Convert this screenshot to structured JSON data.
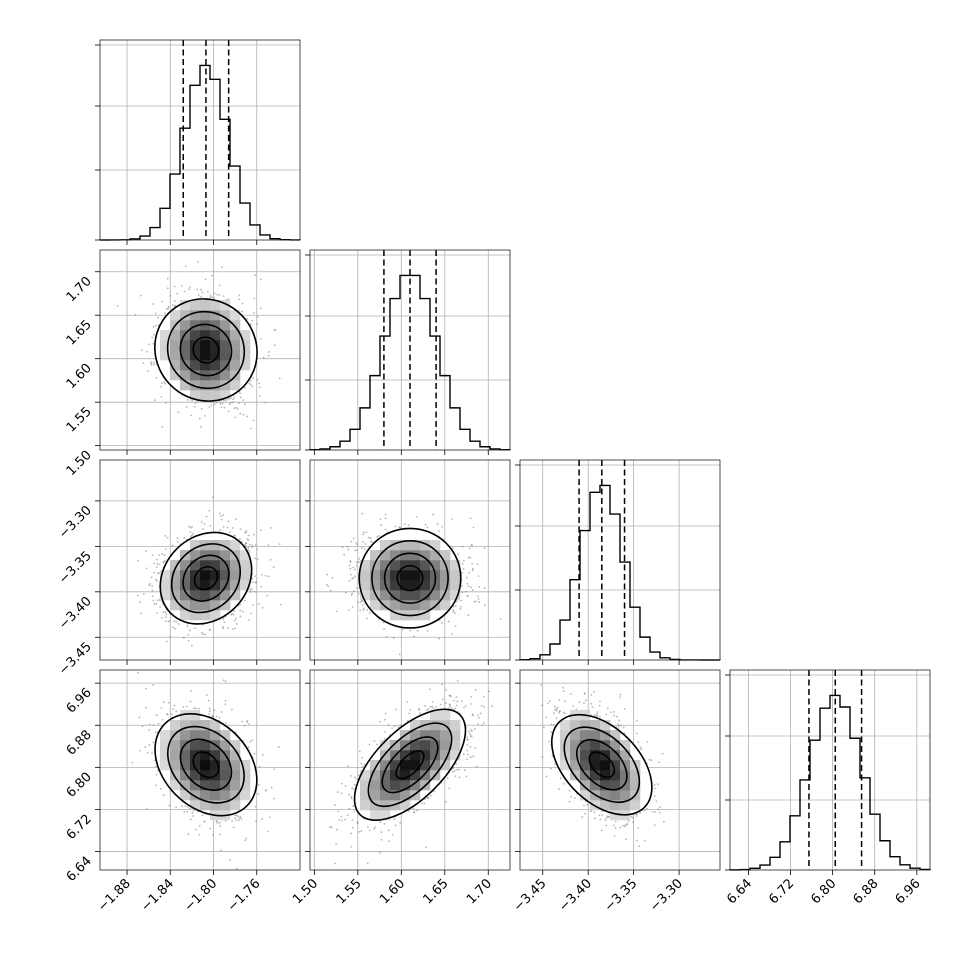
{
  "chart_data": {
    "type": "corner",
    "parameters": [
      {
        "center": -1.807,
        "std": 0.0205,
        "range": [
          -1.905,
          -1.72
        ],
        "ticks": [
          -1.88,
          -1.84,
          -1.8,
          -1.76
        ],
        "tick_labels": [
          "−1.88",
          "−1.84",
          "−1.80",
          "−1.76"
        ],
        "quantiles": [
          -1.828,
          -1.807,
          -1.786
        ]
      },
      {
        "center": 1.61,
        "std": 0.0305,
        "range": [
          1.495,
          1.725
        ],
        "ticks": [
          1.5,
          1.55,
          1.6,
          1.65,
          1.7
        ],
        "tick_labels": [
          "1.50",
          "1.55",
          "1.60",
          "1.65",
          "1.70"
        ],
        "quantiles": [
          1.58,
          1.61,
          1.64
        ]
      },
      {
        "center": -3.385,
        "std": 0.0235,
        "range": [
          -3.475,
          -3.255
        ],
        "ticks": [
          -3.45,
          -3.4,
          -3.35,
          -3.3
        ],
        "tick_labels": [
          "−3.45",
          "−3.40",
          "−3.35",
          "−3.30"
        ],
        "quantiles": [
          -3.41,
          -3.385,
          -3.36
        ]
      },
      {
        "center": 6.805,
        "std": 0.05,
        "range": [
          6.605,
          6.985
        ],
        "ticks": [
          6.64,
          6.72,
          6.8,
          6.88,
          6.96
        ],
        "tick_labels": [
          "6.64",
          "6.72",
          "6.80",
          "6.88",
          "6.96"
        ],
        "quantiles": [
          6.755,
          6.805,
          6.855
        ]
      }
    ],
    "correlations": [
      {
        "i": 1,
        "j": 0,
        "rho": -0.05
      },
      {
        "i": 2,
        "j": 0,
        "rho": 0.18
      },
      {
        "i": 2,
        "j": 1,
        "rho": -0.02
      },
      {
        "i": 3,
        "j": 0,
        "rho": -0.3
      },
      {
        "i": 3,
        "j": 1,
        "rho": 0.62
      },
      {
        "i": 3,
        "j": 2,
        "rho": -0.45
      }
    ],
    "hist_bins": 20,
    "contour_levels_sigma": [
      0.5,
      1.0,
      1.5,
      2.0
    ],
    "grid": true,
    "title": "",
    "legend": "none"
  }
}
